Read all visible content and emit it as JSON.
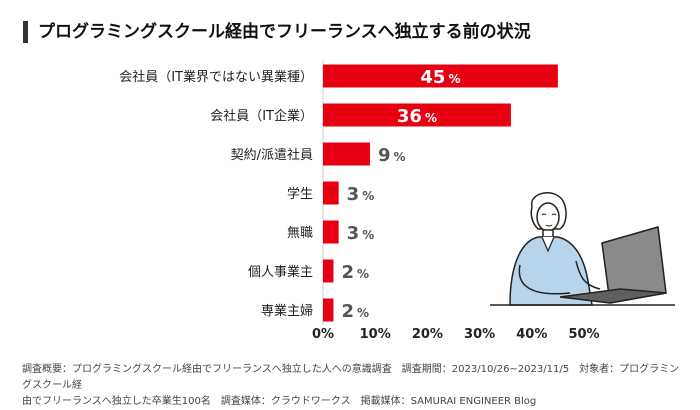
{
  "title": "プログラミングスクール経由でフリーランスへ独立する前の状況",
  "chart_data": {
    "type": "bar",
    "orientation": "horizontal",
    "categories": [
      "会社員（IT業界ではない異業種）",
      "会社員（IT企業）",
      "契約/派遣社員",
      "学生",
      "無職",
      "個人事業主",
      "専業主婦"
    ],
    "values": [
      45,
      36,
      9,
      3,
      3,
      2,
      2
    ],
    "value_labels": [
      "45",
      "36",
      "9",
      "3",
      "3",
      "2",
      "2"
    ],
    "unit": "%",
    "xlim": [
      0,
      50
    ],
    "xticks": [
      0,
      10,
      20,
      30,
      40,
      50
    ],
    "xtick_labels": [
      "0%",
      "10%",
      "20%",
      "30%",
      "40%",
      "50%"
    ],
    "xlabel": "",
    "ylabel": "",
    "bar_color": "#e60012",
    "label_inside_color": "#ffffff",
    "label_outside_color": "#555555"
  },
  "footer": {
    "line1": "調査概要：プログラミングスクール経由でフリーランスへ独立した人への意識調査　調査期間：2023/10/26~2023/11/5　対象者：プログラミングスクール経",
    "line2": "由でフリーランスへ独立した卒業生100名　調査媒体：クラウドワークス　掲載媒体：SAMURAI ENGINEER Blog"
  }
}
